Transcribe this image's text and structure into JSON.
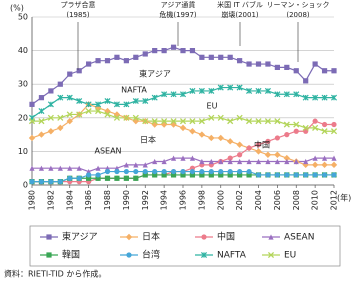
{
  "chart_data": {
    "type": "line",
    "y_label": "(%)",
    "x_label": "(年)",
    "source": "資料：RIETI-TID から作成。",
    "annotations": [
      [
        "プラザ合意",
        "(1985)"
      ],
      [
        "アジア通貨",
        "危機(1997)"
      ],
      [
        "米国 IT バブル",
        "崩壊(2001)"
      ],
      [
        "リーマン・ショック",
        "(2008)"
      ]
    ],
    "x": [
      1980,
      1981,
      1982,
      1983,
      1984,
      1985,
      1986,
      1987,
      1988,
      1989,
      1990,
      1991,
      1992,
      1993,
      1994,
      1995,
      1996,
      1997,
      1998,
      1999,
      2000,
      2001,
      2002,
      2003,
      2004,
      2005,
      2006,
      2007,
      2008,
      2009,
      2010,
      2011,
      2012
    ],
    "xlim": [
      1980,
      2012
    ],
    "xticks": [
      1980,
      1982,
      1984,
      1986,
      1988,
      1990,
      1992,
      1994,
      1996,
      1998,
      2000,
      2002,
      2004,
      2006,
      2008,
      2010,
      2012
    ],
    "ylim": [
      0,
      50
    ],
    "yticks": [
      0,
      10,
      20,
      30,
      40,
      50
    ],
    "grid": true,
    "series": [
      {
        "name": "東アジア",
        "color": "#7c6bb5",
        "marker": "square",
        "values": [
          24,
          26,
          28,
          30,
          33,
          34,
          36,
          37,
          37,
          38,
          37,
          38,
          39,
          40,
          40,
          41,
          40,
          40,
          38,
          38,
          38,
          38,
          37,
          36,
          36,
          36,
          35,
          35,
          34,
          31,
          36,
          34,
          34
        ]
      },
      {
        "name": "日本",
        "color": "#f5b066",
        "marker": "diamond",
        "values": [
          14,
          15,
          16,
          17,
          19,
          21,
          24,
          23,
          22,
          21,
          20,
          19,
          19,
          18,
          18,
          18,
          17,
          16,
          15,
          14,
          14,
          13,
          12,
          11,
          10,
          9,
          9,
          8,
          7,
          6,
          6,
          6,
          6
        ]
      },
      {
        "name": "中国",
        "color": "#ec7b8b",
        "marker": "circle",
        "values": [
          1,
          1,
          1,
          1,
          1,
          1,
          1,
          2,
          2,
          2,
          2,
          2,
          3,
          3,
          3,
          4,
          4,
          5,
          6,
          6,
          7,
          8,
          9,
          11,
          12,
          13,
          14,
          15,
          16,
          16,
          19,
          18,
          18
        ]
      },
      {
        "name": "ASEAN",
        "color": "#9a6fc0",
        "marker": "triangle",
        "values": [
          5,
          5,
          5,
          5,
          5,
          5,
          4,
          5,
          5,
          5,
          6,
          6,
          6,
          7,
          7,
          8,
          8,
          8,
          7,
          7,
          7,
          7,
          7,
          7,
          7,
          7,
          7,
          7,
          7,
          7,
          8,
          8,
          8
        ]
      },
      {
        "name": "韓国",
        "color": "#3aa655",
        "marker": "square",
        "values": [
          1,
          1,
          1,
          1,
          2,
          2,
          2,
          2,
          2,
          2,
          2,
          2,
          3,
          3,
          3,
          3,
          3,
          3,
          3,
          3,
          3,
          3,
          3,
          3,
          3,
          3,
          3,
          3,
          3,
          3,
          3,
          3,
          3
        ]
      },
      {
        "name": "台湾",
        "color": "#45a6d8",
        "marker": "circle",
        "values": [
          1,
          1,
          1,
          1,
          2,
          2,
          3,
          3,
          4,
          4,
          4,
          4,
          4,
          4,
          4,
          4,
          4,
          4,
          4,
          4,
          4,
          4,
          4,
          4,
          3,
          3,
          3,
          3,
          3,
          3,
          3,
          3,
          3
        ]
      },
      {
        "name": "NAFTA",
        "color": "#2fb3a2",
        "marker": "star",
        "values": [
          20,
          22,
          24,
          26,
          26,
          25,
          24,
          24,
          25,
          24,
          24,
          25,
          25,
          26,
          27,
          27,
          27,
          28,
          28,
          28,
          29,
          29,
          29,
          28,
          28,
          28,
          27,
          27,
          27,
          26,
          26,
          26,
          26
        ]
      },
      {
        "name": "EU",
        "color": "#b3d55a",
        "marker": "x",
        "values": [
          19,
          19,
          20,
          20,
          21,
          21,
          22,
          22,
          21,
          20,
          20,
          20,
          19,
          19,
          19,
          19,
          19,
          19,
          19,
          20,
          20,
          19,
          20,
          19,
          19,
          19,
          19,
          18,
          18,
          17,
          17,
          16,
          16
        ]
      }
    ]
  }
}
